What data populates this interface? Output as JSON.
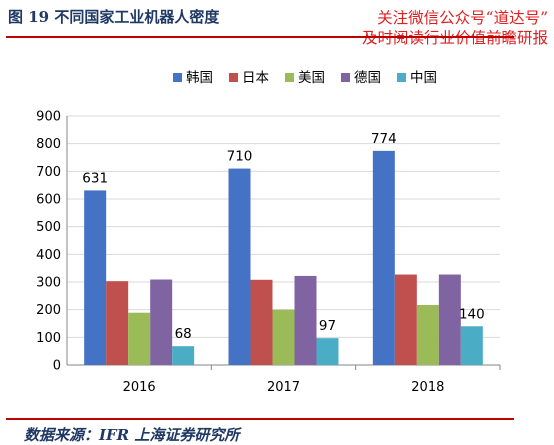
{
  "header": {
    "figure_title": "图 19 不同国家工业机器人密度",
    "watermark_line1": "关注微信公众号“道达号”",
    "watermark_line2": "及时阅读行业价值前瞻研报"
  },
  "footer": {
    "source": "数据来源：IFR 上海证券研究所"
  },
  "chart_data": {
    "type": "bar",
    "title": "",
    "xlabel": "",
    "ylabel": "",
    "categories": [
      "2016",
      "2017",
      "2018"
    ],
    "ylim": [
      0,
      900
    ],
    "yticks": [
      0,
      100,
      200,
      300,
      400,
      500,
      600,
      700,
      800,
      900
    ],
    "grid": true,
    "legend_position": "top",
    "series": [
      {
        "name": "韩国",
        "color": "#4472c4",
        "values": [
          631,
          710,
          774
        ],
        "labels": [
          "631",
          "710",
          "774"
        ]
      },
      {
        "name": "日本",
        "color": "#c0504d",
        "values": [
          303,
          308,
          327
        ],
        "labels": [
          null,
          null,
          null
        ]
      },
      {
        "name": "美国",
        "color": "#9bbb59",
        "values": [
          189,
          200,
          217
        ],
        "labels": [
          null,
          null,
          null
        ]
      },
      {
        "name": "德国",
        "color": "#8064a2",
        "values": [
          309,
          322,
          327
        ],
        "labels": [
          null,
          null,
          null
        ]
      },
      {
        "name": "中国",
        "color": "#4bacc6",
        "values": [
          68,
          97,
          140
        ],
        "labels": [
          "68",
          "97",
          "140"
        ]
      }
    ]
  }
}
